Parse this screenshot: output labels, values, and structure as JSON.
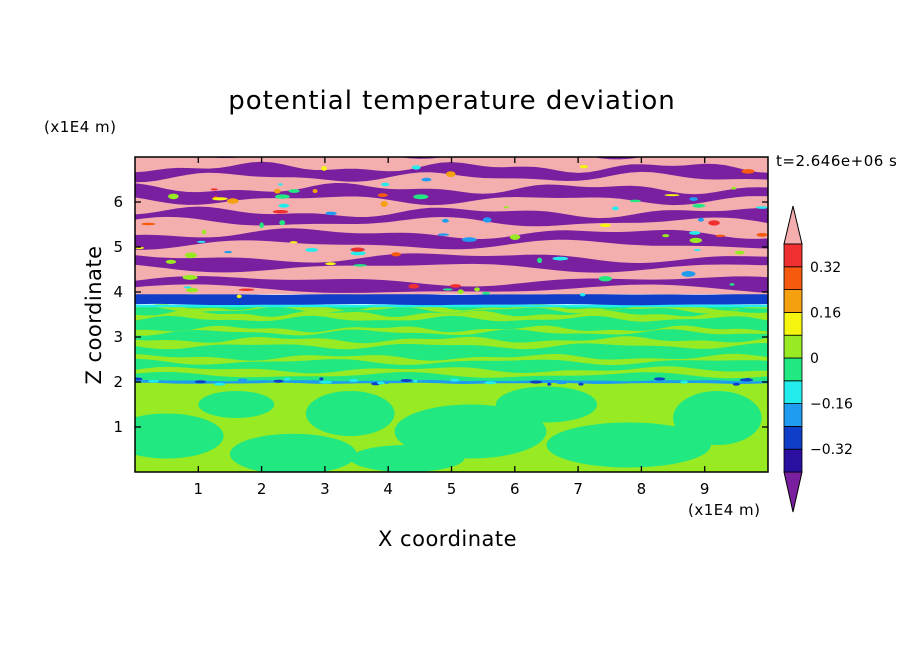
{
  "chart_data": {
    "type": "heatmap",
    "title": "potential temperature deviation",
    "xlabel": "X coordinate",
    "ylabel": "Z coordinate",
    "x_unit": "(x1E4 m)",
    "y_unit": "(x1E4 m)",
    "timestamp": "t=2.646e+06 s",
    "xlim": [
      0,
      10
    ],
    "ylim": [
      0,
      7
    ],
    "x_ticks": [
      "1",
      "2",
      "3",
      "4",
      "5",
      "6",
      "7",
      "8",
      "9"
    ],
    "y_ticks": [
      "1",
      "2",
      "3",
      "4",
      "5",
      "6"
    ],
    "colorbar": {
      "levels": [
        -0.4,
        -0.32,
        -0.24,
        -0.16,
        -0.08,
        0,
        0.08,
        0.16,
        0.24,
        0.32,
        0.4
      ],
      "labels": [
        "0.32",
        "0.16",
        "0",
        "−0.16",
        "−0.32"
      ],
      "colors": [
        "#7a1fa0",
        "#2b0fa0",
        "#0f3fc8",
        "#1f9cf0",
        "#22ecec",
        "#22e882",
        "#98ea22",
        "#f5f50f",
        "#f5a00f",
        "#f55a0f",
        "#f03030",
        "#f5aeae"
      ],
      "extend": "both"
    },
    "layers": [
      {
        "z_range": [
          0,
          2.0
        ],
        "field": "weak deviations, 0 to 0.08",
        "dominant": "0 to 0.08",
        "secondary": "-0.08 to 0"
      },
      {
        "z_range": [
          2.0,
          3.7
        ],
        "field": "mixed banded, -0.08 to 0.08",
        "dominant": "-0.08 to 0",
        "secondary": "0 to 0.08"
      },
      {
        "z_range": [
          3.7,
          4.1
        ],
        "field": "sharp negative band",
        "dominant": "-0.24 to -0.08"
      },
      {
        "z_range": [
          4.1,
          7.0
        ],
        "field": "alternating strong bands",
        "dominant": "> 0.4",
        "secondary": "< -0.4"
      }
    ]
  }
}
